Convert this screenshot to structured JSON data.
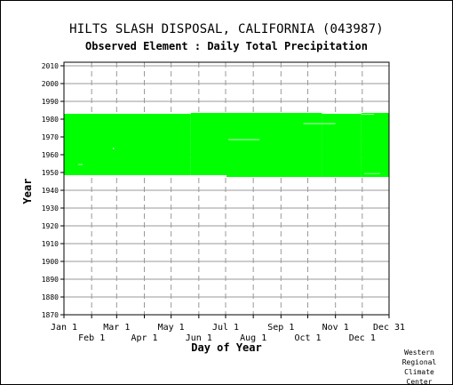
{
  "header": {
    "title": "HILTS SLASH DISPOSAL, CALIFORNIA   (043987)",
    "subtitle": "Observed Element : Daily Total Precipitation"
  },
  "credit": "Western\nRegional\nClimate\nCenter",
  "colors": {
    "data": "#00ff00",
    "grid": "#999999",
    "axis": "#000000",
    "background": "#ffffff"
  },
  "chart_data": {
    "type": "heatmap",
    "title": "HILTS SLASH DISPOSAL, CALIFORNIA   (043987)",
    "subtitle": "Observed Element : Daily Total Precipitation",
    "xlabel": "Day of Year",
    "ylabel": "Year",
    "xlim": [
      1,
      365
    ],
    "ylim": [
      1870,
      2012
    ],
    "x_ticks_top_row": [
      {
        "label": "Jan 1",
        "day": 1
      },
      {
        "label": "Mar 1",
        "day": 60
      },
      {
        "label": "May 1",
        "day": 121
      },
      {
        "label": "Jul 1",
        "day": 182
      },
      {
        "label": "Sep 1",
        "day": 244
      },
      {
        "label": "Nov 1",
        "day": 305
      },
      {
        "label": "Dec 31",
        "day": 365
      }
    ],
    "x_ticks_bottom_row": [
      {
        "label": "Feb 1",
        "day": 32
      },
      {
        "label": "Apr 1",
        "day": 91
      },
      {
        "label": "Jun 1",
        "day": 152
      },
      {
        "label": "Aug 1",
        "day": 213
      },
      {
        "label": "Oct 1",
        "day": 274
      },
      {
        "label": "Dec 1",
        "day": 335
      }
    ],
    "y_ticks": [
      1870,
      1880,
      1890,
      1900,
      1910,
      1920,
      1930,
      1940,
      1950,
      1960,
      1970,
      1980,
      1990,
      2000,
      2010
    ],
    "grid": true,
    "coverage": [
      {
        "from_day": 1,
        "to_day": 143,
        "from_year": 1948.5,
        "to_year": 1983.0
      },
      {
        "from_day": 143,
        "to_day": 183,
        "from_year": 1948.5,
        "to_year": 1983.5
      },
      {
        "from_day": 183,
        "to_day": 290,
        "from_year": 1947.5,
        "to_year": 1983.5
      },
      {
        "from_day": 290,
        "to_day": 334,
        "from_year": 1947.5,
        "to_year": 1983.0
      },
      {
        "from_day": 334,
        "to_day": 365,
        "from_year": 1947.5,
        "to_year": 1982.5
      }
    ],
    "gaps": [
      {
        "from_day": 334,
        "to_day": 365,
        "from_year": 1982.5,
        "to_year": 1983.5,
        "fill": "data"
      },
      {
        "from_day": 334,
        "to_day": 348,
        "from_year": 1982.6,
        "to_year": 1982.9
      },
      {
        "from_day": 269,
        "to_day": 305,
        "from_year": 1977.3,
        "to_year": 1977.7
      },
      {
        "from_day": 185,
        "to_day": 220,
        "from_year": 1968.3,
        "to_year": 1968.7
      },
      {
        "from_day": 17,
        "to_day": 22,
        "from_year": 1954.3,
        "to_year": 1954.7
      },
      {
        "from_day": 337,
        "to_day": 355,
        "from_year": 1949.3,
        "to_year": 1949.6
      },
      {
        "from_day": 163,
        "to_day": 168,
        "from_year": 1948.0,
        "to_year": 1948.5
      },
      {
        "from_day": 56,
        "to_day": 57,
        "from_year": 1963.0,
        "to_year": 1964.0
      }
    ]
  }
}
